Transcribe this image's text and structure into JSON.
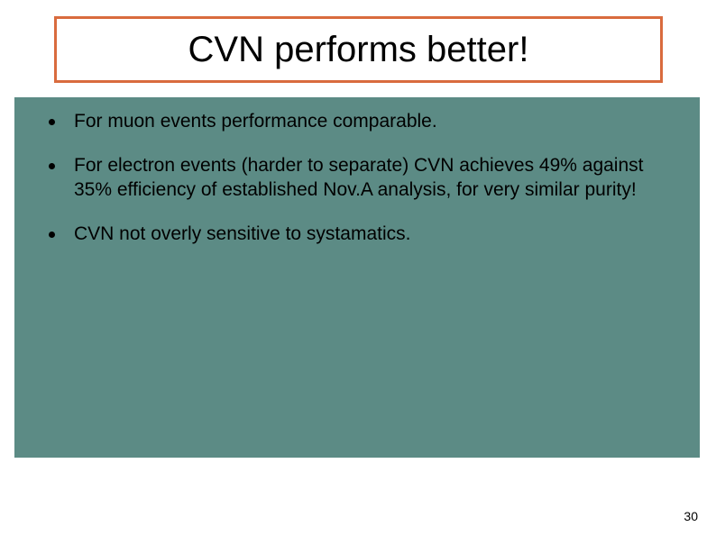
{
  "slide": {
    "title": "CVN performs better!",
    "title_border_color": "#d96b3e",
    "title_fontsize": 40,
    "content_background": "#5c8b85",
    "bullets": [
      {
        "text": "For muon events performance comparable."
      },
      {
        "text": "For electron events (harder to separate) CVN achieves 49% against 35% efficiency of established Nov.A analysis, for very similar purity!"
      },
      {
        "text": "CVN not overly sensitive to systamatics."
      }
    ],
    "bullet_fontsize": 21,
    "bullet_color": "#000000",
    "page_number": "30",
    "background_color": "#ffffff"
  }
}
